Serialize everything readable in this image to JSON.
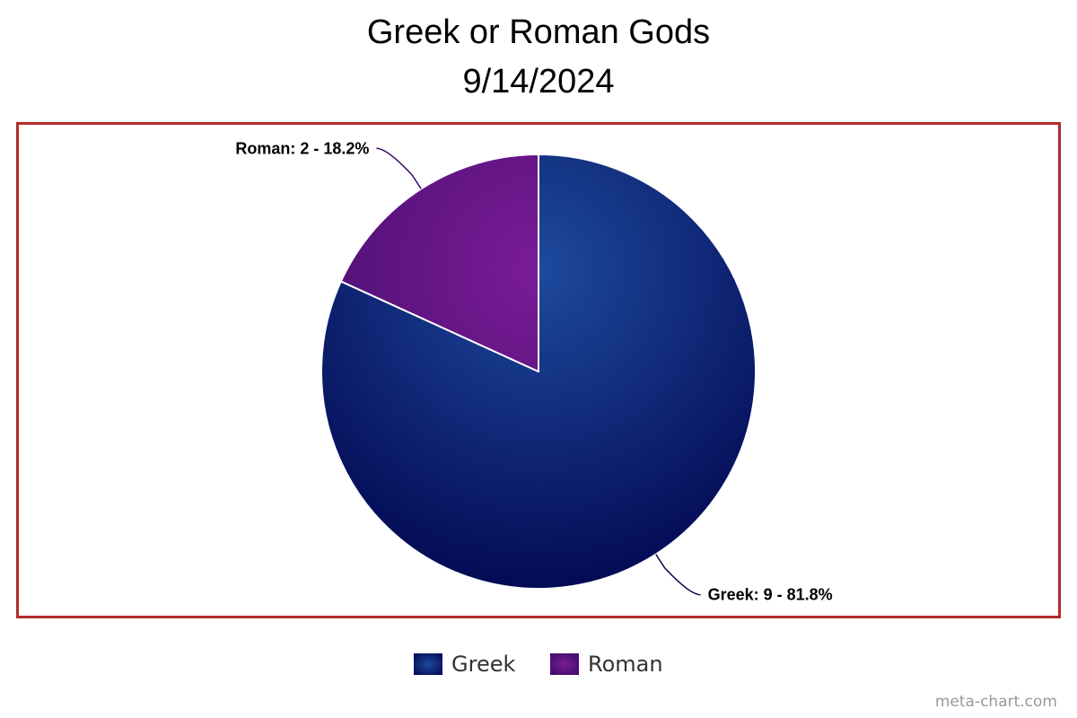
{
  "title_lines": [
    "Greek or Roman Gods",
    "9/14/2024"
  ],
  "watermark": "meta-chart.com",
  "colors": {
    "frame_border": "#b22b2b",
    "slice_border": "#ffffff"
  },
  "chart_data": {
    "type": "pie",
    "title": "Greek or Roman Gods",
    "subtitle": "9/14/2024",
    "slices": [
      {
        "label": "Greek",
        "value": 9,
        "percent": 81.8,
        "data_label": "Greek: 9 - 81.8%",
        "color_center": "#1e4a9e",
        "color_edge": "#020650"
      },
      {
        "label": "Roman",
        "value": 2,
        "percent": 18.2,
        "data_label": "Roman: 2 - 18.2%",
        "color_center": "#7a1c96",
        "color_edge": "#3a0a66"
      }
    ],
    "start_angle": "12 o'clock",
    "direction": "clockwise",
    "legend": {
      "position": "bottom",
      "items": [
        "Greek",
        "Roman"
      ]
    }
  }
}
